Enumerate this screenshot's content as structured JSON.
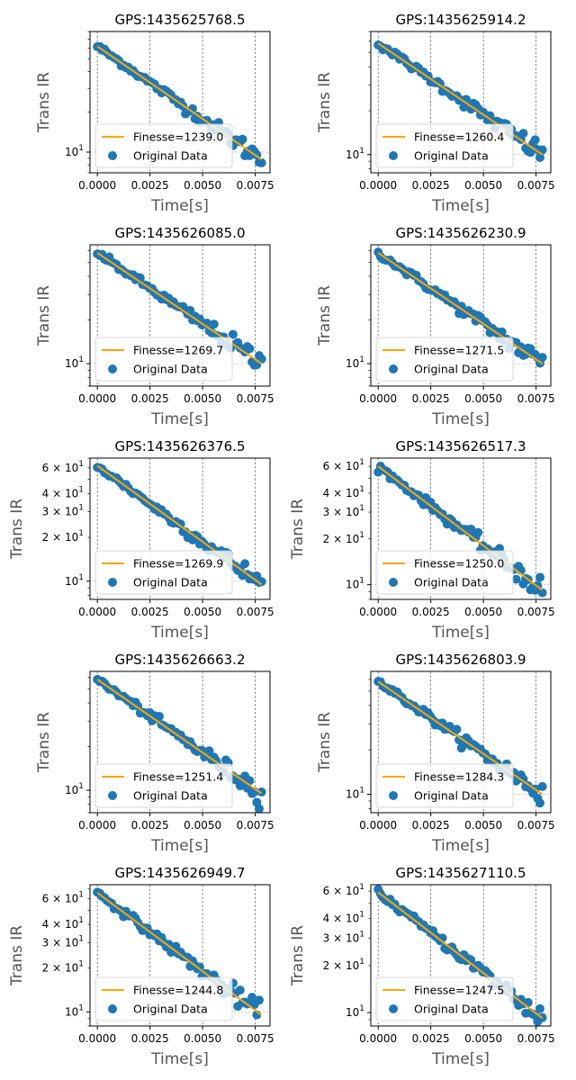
{
  "figure": {
    "xlabel": "Time[s]",
    "ylabel": "Trans IR",
    "y_scale": "log",
    "legend_location": "lower left",
    "grid": "x-major dashed",
    "colors": {
      "fit": "#ffa500",
      "data": "#1f77b4"
    },
    "legend_data_label": "Original Data",
    "x_ticks": [
      "0.0000",
      "0.0025",
      "0.0050",
      "0.0075"
    ]
  },
  "chart_data": [
    {
      "type": "scatter",
      "title": "GPS:1435625768.5",
      "fit_label": "Finesse=1239.0",
      "xlim": [
        -0.00035,
        0.0082
      ],
      "ylim": [
        7,
        80
      ],
      "y0": 62,
      "y_end": 8.8,
      "y_ticks": [
        {
          "value": 10,
          "label": "10",
          "sup": "1"
        }
      ],
      "x_range": [
        0,
        0.0078
      ]
    },
    {
      "type": "scatter",
      "title": "GPS:1435625914.2",
      "fit_label": "Finesse=1260.4",
      "xlim": [
        -0.00035,
        0.0082
      ],
      "ylim": [
        7.5,
        70
      ],
      "y0": 58,
      "y_end": 10,
      "y_ticks": [
        {
          "value": 10,
          "label": "10",
          "sup": "1"
        }
      ],
      "x_range": [
        0,
        0.0078
      ]
    },
    {
      "type": "scatter",
      "title": "GPS:1435626085.0",
      "fit_label": "Finesse=1269.7",
      "xlim": [
        -0.00035,
        0.0082
      ],
      "ylim": [
        7,
        66
      ],
      "y0": 58,
      "y_end": 10,
      "y_ticks": [
        {
          "value": 10,
          "label": "10",
          "sup": "1"
        }
      ],
      "x_range": [
        0,
        0.0078
      ]
    },
    {
      "type": "scatter",
      "title": "GPS:1435626230.9",
      "fit_label": "Finesse=1271.5",
      "xlim": [
        -0.00035,
        0.0082
      ],
      "ylim": [
        7,
        66
      ],
      "y0": 58,
      "y_end": 10,
      "y_ticks": [
        {
          "value": 10,
          "label": "10",
          "sup": "1"
        }
      ],
      "x_range": [
        0,
        0.0078
      ]
    },
    {
      "type": "scatter",
      "title": "GPS:1435626376.5",
      "fit_label": "Finesse=1269.9",
      "xlim": [
        -0.00035,
        0.0082
      ],
      "ylim": [
        7.5,
        70
      ],
      "y0": 62,
      "y_end": 9.5,
      "y_ticks": [
        {
          "value": 10,
          "label": "10",
          "sup": "1"
        },
        {
          "value": 20,
          "label": "2 × 10",
          "sup": "1"
        },
        {
          "value": 30,
          "label": "3 × 10",
          "sup": "1"
        },
        {
          "value": 40,
          "label": "4 × 10",
          "sup": "1"
        },
        {
          "value": 60,
          "label": "6 × 10",
          "sup": "1"
        }
      ],
      "x_range": [
        0,
        0.0078
      ]
    },
    {
      "type": "scatter",
      "title": "GPS:1435626517.3",
      "fit_label": "Finesse=1250.0",
      "xlim": [
        -0.00035,
        0.0082
      ],
      "ylim": [
        8,
        68
      ],
      "y0": 60,
      "y_end": 9.2,
      "y_ticks": [
        {
          "value": 10,
          "label": "10",
          "sup": "1"
        },
        {
          "value": 20,
          "label": "2 × 10",
          "sup": "1"
        },
        {
          "value": 30,
          "label": "3 × 10",
          "sup": "1"
        },
        {
          "value": 40,
          "label": "4 × 10",
          "sup": "1"
        },
        {
          "value": 60,
          "label": "6 × 10",
          "sup": "1"
        }
      ],
      "x_range": [
        0,
        0.0078
      ]
    },
    {
      "type": "scatter",
      "title": "GPS:1435626663.2",
      "fit_label": "Finesse=1251.4",
      "xlim": [
        -0.00035,
        0.0082
      ],
      "ylim": [
        7,
        66
      ],
      "y0": 58,
      "y_end": 9.5,
      "y_ticks": [
        {
          "value": 10,
          "label": "10",
          "sup": "1"
        }
      ],
      "x_range": [
        0,
        0.0078
      ]
    },
    {
      "type": "scatter",
      "title": "GPS:1435626803.9",
      "fit_label": "Finesse=1284.3",
      "xlim": [
        -0.00035,
        0.0082
      ],
      "ylim": [
        7.5,
        68
      ],
      "y0": 58,
      "y_end": 10,
      "y_ticks": [
        {
          "value": 10,
          "label": "10",
          "sup": "1"
        }
      ],
      "x_range": [
        0,
        0.0078
      ]
    },
    {
      "type": "scatter",
      "title": "GPS:1435626949.7",
      "fit_label": "Finesse=1244.8",
      "xlim": [
        -0.00035,
        0.0082
      ],
      "ylim": [
        8,
        75
      ],
      "y0": 66,
      "y_end": 9.5,
      "y_ticks": [
        {
          "value": 10,
          "label": "10",
          "sup": "1"
        },
        {
          "value": 20,
          "label": "2 × 10",
          "sup": "1"
        },
        {
          "value": 30,
          "label": "3 × 10",
          "sup": "1"
        },
        {
          "value": 40,
          "label": "4 × 10",
          "sup": "1"
        },
        {
          "value": 60,
          "label": "6 × 10",
          "sup": "1"
        }
      ],
      "x_range": [
        0,
        0.0078
      ]
    },
    {
      "type": "scatter",
      "title": "GPS:1435627110.5",
      "fit_label": "Finesse=1247.5",
      "xlim": [
        -0.00035,
        0.0082
      ],
      "ylim": [
        8.2,
        66
      ],
      "y0": 59,
      "y_end": 9.2,
      "y_ticks": [
        {
          "value": 10,
          "label": "10",
          "sup": "1"
        },
        {
          "value": 20,
          "label": "2 × 10",
          "sup": "1"
        },
        {
          "value": 30,
          "label": "3 × 10",
          "sup": "1"
        },
        {
          "value": 40,
          "label": "4 × 10",
          "sup": "1"
        },
        {
          "value": 60,
          "label": "6 × 10",
          "sup": "1"
        }
      ],
      "x_range": [
        0,
        0.0078
      ]
    }
  ]
}
